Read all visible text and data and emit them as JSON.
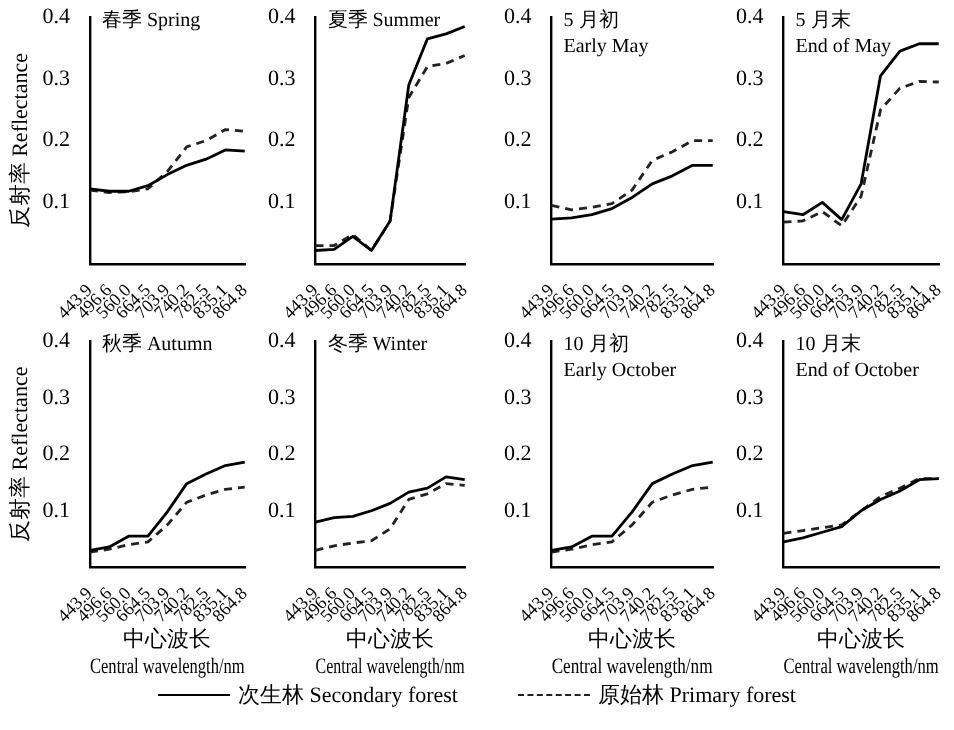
{
  "chart_data": [
    {
      "type": "line",
      "title": "春季 Spring",
      "ylabel": "反射率 Reflectance",
      "categories": [
        "443.9",
        "496.6",
        "560.0",
        "664.5",
        "703.9",
        "740.2",
        "782.5",
        "835.1",
        "864.8"
      ],
      "ylim": [
        0,
        0.4
      ],
      "yticks": [
        0.1,
        0.2,
        0.3,
        0.4
      ],
      "grid": false,
      "legend": "bottom",
      "marker": "none",
      "series": [
        {
          "name": "次生林 Secondary forest",
          "color": "#000000",
          "line_style": "solid",
          "values": [
            0.122,
            0.118,
            0.118,
            0.127,
            0.145,
            0.16,
            0.17,
            0.185,
            0.183
          ]
        },
        {
          "name": "原始林 Primary forest",
          "color": "#222222",
          "line_style": "dashed",
          "values": [
            0.12,
            0.116,
            0.117,
            0.122,
            0.15,
            0.19,
            0.2,
            0.218,
            0.215
          ]
        }
      ]
    },
    {
      "type": "line",
      "title": "夏季 Summer",
      "categories": [
        "443.9",
        "496.6",
        "560.0",
        "664.5",
        "703.9",
        "740.2",
        "782.5",
        "835.1",
        "864.8"
      ],
      "ylim": [
        0,
        0.4
      ],
      "yticks": [
        0.1,
        0.2,
        0.3,
        0.4
      ],
      "grid": false,
      "legend": "bottom",
      "marker": "none",
      "series": [
        {
          "name": "次生林 Secondary forest",
          "color": "#000000",
          "line_style": "solid",
          "values": [
            0.022,
            0.024,
            0.045,
            0.022,
            0.07,
            0.29,
            0.365,
            0.373,
            0.385
          ]
        },
        {
          "name": "原始林 Primary forest",
          "color": "#222222",
          "line_style": "dashed",
          "values": [
            0.03,
            0.03,
            0.048,
            0.022,
            0.07,
            0.27,
            0.32,
            0.325,
            0.338
          ]
        }
      ]
    },
    {
      "type": "line",
      "title": "5 月初\nEarly May",
      "categories": [
        "443.9",
        "496.6",
        "560.0",
        "664.5",
        "703.9",
        "740.2",
        "782.5",
        "835.1",
        "864.8"
      ],
      "ylim": [
        0,
        0.4
      ],
      "yticks": [
        0.1,
        0.2,
        0.3,
        0.4
      ],
      "grid": false,
      "legend": "bottom",
      "marker": "none",
      "series": [
        {
          "name": "次生林 Secondary forest",
          "color": "#000000",
          "line_style": "solid",
          "values": [
            0.073,
            0.075,
            0.08,
            0.09,
            0.108,
            0.13,
            0.143,
            0.16,
            0.16
          ]
        },
        {
          "name": "原始林 Primary forest",
          "color": "#222222",
          "line_style": "dashed",
          "values": [
            0.095,
            0.088,
            0.092,
            0.098,
            0.12,
            0.168,
            0.182,
            0.2,
            0.2
          ]
        }
      ]
    },
    {
      "type": "line",
      "title": "5 月末\nEnd of May",
      "categories": [
        "443.9",
        "496.6",
        "560.0",
        "664.5",
        "703.9",
        "740.2",
        "782.5",
        "835.1",
        "864.8"
      ],
      "ylim": [
        0,
        0.4
      ],
      "yticks": [
        0.1,
        0.2,
        0.3,
        0.4
      ],
      "grid": false,
      "legend": "bottom",
      "marker": "none",
      "series": [
        {
          "name": "次生林 Secondary forest",
          "color": "#000000",
          "line_style": "solid",
          "values": [
            0.085,
            0.08,
            0.1,
            0.072,
            0.13,
            0.305,
            0.345,
            0.357,
            0.357
          ]
        },
        {
          "name": "原始林 Primary forest",
          "color": "#222222",
          "line_style": "dashed",
          "values": [
            0.068,
            0.07,
            0.085,
            0.062,
            0.11,
            0.25,
            0.285,
            0.296,
            0.295
          ]
        }
      ]
    },
    {
      "type": "line",
      "title": "秋季 Autumn",
      "ylabel": "反射率 Reflectance",
      "xlabel": "中心波长\nCentral wavelength/nm",
      "categories": [
        "443.9",
        "496.6",
        "560.0",
        "664.5",
        "703.9",
        "740.2",
        "782.5",
        "835.1",
        "864.8"
      ],
      "ylim": [
        0,
        0.4
      ],
      "yticks": [
        0.1,
        0.2,
        0.3,
        0.4
      ],
      "grid": false,
      "legend": "bottom",
      "marker": "none",
      "series": [
        {
          "name": "次生林 Secondary forest",
          "color": "#000000",
          "line_style": "solid",
          "values": [
            0.03,
            0.036,
            0.055,
            0.055,
            0.098,
            0.148,
            0.165,
            0.18,
            0.186
          ]
        },
        {
          "name": "原始林 Primary forest",
          "color": "#222222",
          "line_style": "dashed",
          "values": [
            0.027,
            0.032,
            0.04,
            0.045,
            0.075,
            0.115,
            0.128,
            0.138,
            0.142
          ]
        }
      ]
    },
    {
      "type": "line",
      "title": "冬季 Winter",
      "xlabel": "中心波长\nCentral wavelength/nm",
      "categories": [
        "443.9",
        "496.6",
        "560.0",
        "664.5",
        "703.9",
        "740.2",
        "782.5",
        "835.1",
        "864.8"
      ],
      "ylim": [
        0,
        0.4
      ],
      "yticks": [
        0.1,
        0.2,
        0.3,
        0.4
      ],
      "grid": false,
      "legend": "bottom",
      "marker": "none",
      "series": [
        {
          "name": "次生林 Secondary forest",
          "color": "#000000",
          "line_style": "solid",
          "values": [
            0.08,
            0.088,
            0.09,
            0.1,
            0.113,
            0.133,
            0.14,
            0.16,
            0.155
          ]
        },
        {
          "name": "原始林 Primary forest",
          "color": "#222222",
          "line_style": "dashed",
          "values": [
            0.03,
            0.038,
            0.043,
            0.047,
            0.068,
            0.12,
            0.13,
            0.148,
            0.145
          ]
        }
      ]
    },
    {
      "type": "line",
      "title": "10 月初\nEarly October",
      "xlabel": "中心波长\nCentral wavelength/nm",
      "categories": [
        "443.9",
        "496.6",
        "560.0",
        "664.5",
        "703.9",
        "740.2",
        "782.5",
        "835.1",
        "864.8"
      ],
      "ylim": [
        0,
        0.4
      ],
      "yticks": [
        0.1,
        0.2,
        0.3,
        0.4
      ],
      "grid": false,
      "legend": "bottom",
      "marker": "none",
      "series": [
        {
          "name": "次生林 Secondary forest",
          "color": "#000000",
          "line_style": "solid",
          "values": [
            0.03,
            0.036,
            0.055,
            0.055,
            0.098,
            0.148,
            0.165,
            0.18,
            0.186
          ]
        },
        {
          "name": "原始林 Primary forest",
          "color": "#222222",
          "line_style": "dashed",
          "values": [
            0.027,
            0.032,
            0.04,
            0.045,
            0.075,
            0.115,
            0.128,
            0.138,
            0.142
          ]
        }
      ]
    },
    {
      "type": "line",
      "title": "10 月末\nEnd of October",
      "xlabel": "中心波长\nCentral wavelength/nm",
      "categories": [
        "443.9",
        "496.6",
        "560.0",
        "664.5",
        "703.9",
        "740.2",
        "782.5",
        "835.1",
        "864.8"
      ],
      "ylim": [
        0,
        0.4
      ],
      "yticks": [
        0.1,
        0.2,
        0.3,
        0.4
      ],
      "grid": false,
      "legend": "bottom",
      "marker": "none",
      "series": [
        {
          "name": "次生林 Secondary forest",
          "color": "#000000",
          "line_style": "solid",
          "values": [
            0.045,
            0.052,
            0.062,
            0.072,
            0.1,
            0.12,
            0.135,
            0.155,
            0.157
          ]
        },
        {
          "name": "原始林 Primary forest",
          "color": "#222222",
          "line_style": "dashed",
          "values": [
            0.06,
            0.065,
            0.07,
            0.075,
            0.1,
            0.125,
            0.14,
            0.157,
            0.157
          ]
        }
      ]
    }
  ]
}
